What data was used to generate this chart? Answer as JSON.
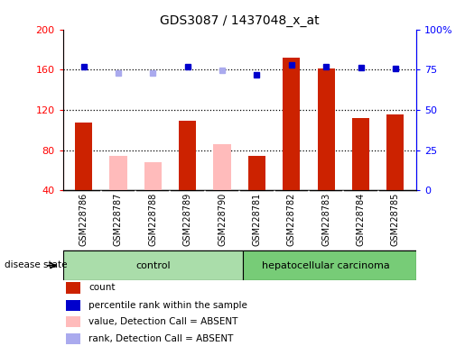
{
  "title": "GDS3087 / 1437048_x_at",
  "samples": [
    "GSM228786",
    "GSM228787",
    "GSM228788",
    "GSM228789",
    "GSM228790",
    "GSM228781",
    "GSM228782",
    "GSM228783",
    "GSM228784",
    "GSM228785"
  ],
  "groups": [
    "control",
    "control",
    "control",
    "control",
    "control",
    "hepatocellular carcinoma",
    "hepatocellular carcinoma",
    "hepatocellular carcinoma",
    "hepatocellular carcinoma",
    "hepatocellular carcinoma"
  ],
  "count_values": [
    107,
    null,
    null,
    109,
    null,
    74,
    172,
    161,
    112,
    115
  ],
  "count_absent_values": [
    null,
    74,
    68,
    null,
    86,
    null,
    null,
    null,
    null,
    null
  ],
  "percentile_values": [
    163,
    null,
    null,
    163,
    null,
    155,
    165,
    163,
    162,
    161
  ],
  "percentile_absent_values": [
    null,
    157,
    157,
    null,
    159,
    null,
    null,
    null,
    null,
    null
  ],
  "ylim": [
    40,
    200
  ],
  "y2lim": [
    0,
    100
  ],
  "yticks": [
    40,
    80,
    120,
    160,
    200
  ],
  "ytick_labels": [
    "40",
    "80",
    "120",
    "160",
    "200"
  ],
  "y2ticks": [
    0,
    25,
    50,
    75,
    100
  ],
  "y2tick_labels": [
    "0",
    "25",
    "50",
    "75",
    "100%"
  ],
  "dotted_lines": [
    80,
    120,
    160
  ],
  "bar_width": 0.5,
  "count_color": "#cc2200",
  "count_absent_color": "#ffbbbb",
  "percentile_color": "#0000cc",
  "percentile_absent_color": "#aaaaee",
  "control_bg": "#aaddaa",
  "carcinoma_bg": "#77cc77",
  "cell_bg": "#d8d8d8",
  "cell_border": "#999999",
  "legend_items": [
    {
      "color": "#cc2200",
      "label": "count"
    },
    {
      "color": "#0000cc",
      "label": "percentile rank within the sample"
    },
    {
      "color": "#ffbbbb",
      "label": "value, Detection Call = ABSENT"
    },
    {
      "color": "#aaaaee",
      "label": "rank, Detection Call = ABSENT"
    }
  ]
}
